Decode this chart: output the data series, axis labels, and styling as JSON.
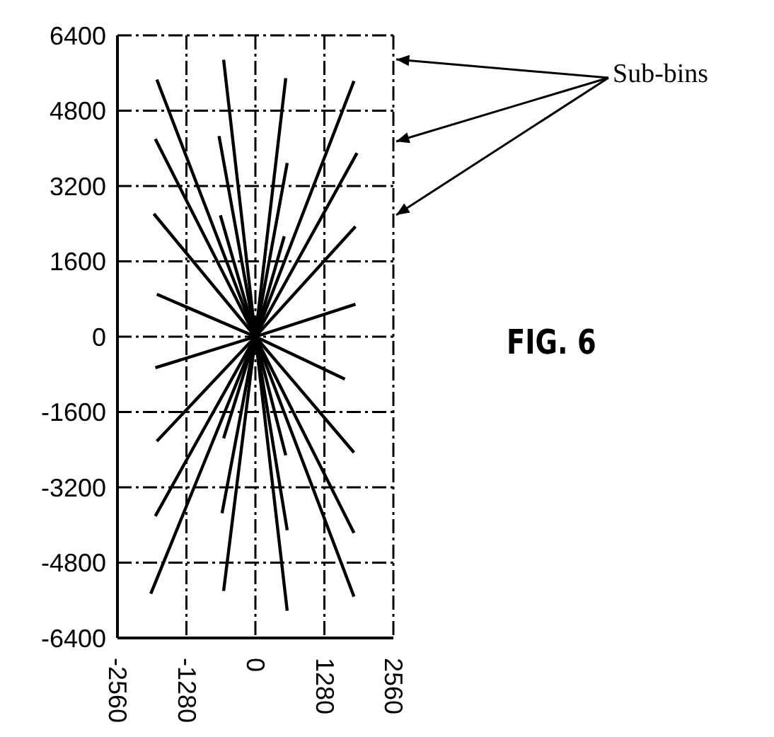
{
  "chart_data": {
    "type": "line",
    "xlim": [
      -2560,
      2560
    ],
    "xticks": [
      -2560,
      -1280,
      0,
      1280,
      2560
    ],
    "ylim": [
      -6400,
      6400
    ],
    "yticks": [
      -6400,
      -4800,
      -3200,
      -1600,
      0,
      1600,
      3200,
      4800,
      6400
    ],
    "grid": true,
    "marker": "none",
    "line_style": "solid",
    "annotations": [
      "Sub-bins",
      "FIG. 6"
    ],
    "series": [
      {
        "color": "#000000",
        "x": [
          -1829,
          0,
          1829
        ],
        "values": [
          5460,
          0,
          -5520
        ]
      },
      {
        "color": "#000000",
        "x": [
          -1857,
          0,
          1829
        ],
        "values": [
          4200,
          0,
          -4170
        ]
      },
      {
        "color": "#000000",
        "x": [
          -1885,
          0,
          1829
        ],
        "values": [
          2610,
          0,
          -2460
        ]
      },
      {
        "color": "#000000",
        "x": [
          -1829,
          0,
          1660
        ],
        "values": [
          900,
          0,
          -900
        ]
      },
      {
        "color": "#000000",
        "x": [
          -590,
          0,
          590
        ],
        "values": [
          5880,
          0,
          -5820
        ]
      },
      {
        "color": "#000000",
        "x": [
          -675,
          0,
          590
        ],
        "values": [
          4260,
          0,
          -4110
        ]
      },
      {
        "color": "#000000",
        "x": [
          -650,
          0,
          563
        ],
        "values": [
          2580,
          0,
          -2520
        ]
      },
      {
        "color": "#000000",
        "x": [
          -590,
          0,
          563
        ],
        "values": [
          -5400,
          0,
          5490
        ]
      },
      {
        "color": "#000000",
        "x": [
          -619,
          0,
          590
        ],
        "values": [
          -3750,
          0,
          3690
        ]
      },
      {
        "color": "#000000",
        "x": [
          -590,
          0,
          535
        ],
        "values": [
          -2160,
          0,
          2130
        ]
      },
      {
        "color": "#000000",
        "x": [
          -1941,
          0,
          1829
        ],
        "values": [
          -5460,
          0,
          5430
        ]
      },
      {
        "color": "#000000",
        "x": [
          -1857,
          0,
          1885
        ],
        "values": [
          -3810,
          0,
          3900
        ]
      },
      {
        "color": "#000000",
        "x": [
          -1829,
          0,
          1857
        ],
        "values": [
          -2220,
          0,
          2340
        ]
      },
      {
        "color": "#000000",
        "x": [
          -1857,
          0,
          1857
        ],
        "values": [
          -660,
          0,
          690
        ]
      }
    ]
  }
}
